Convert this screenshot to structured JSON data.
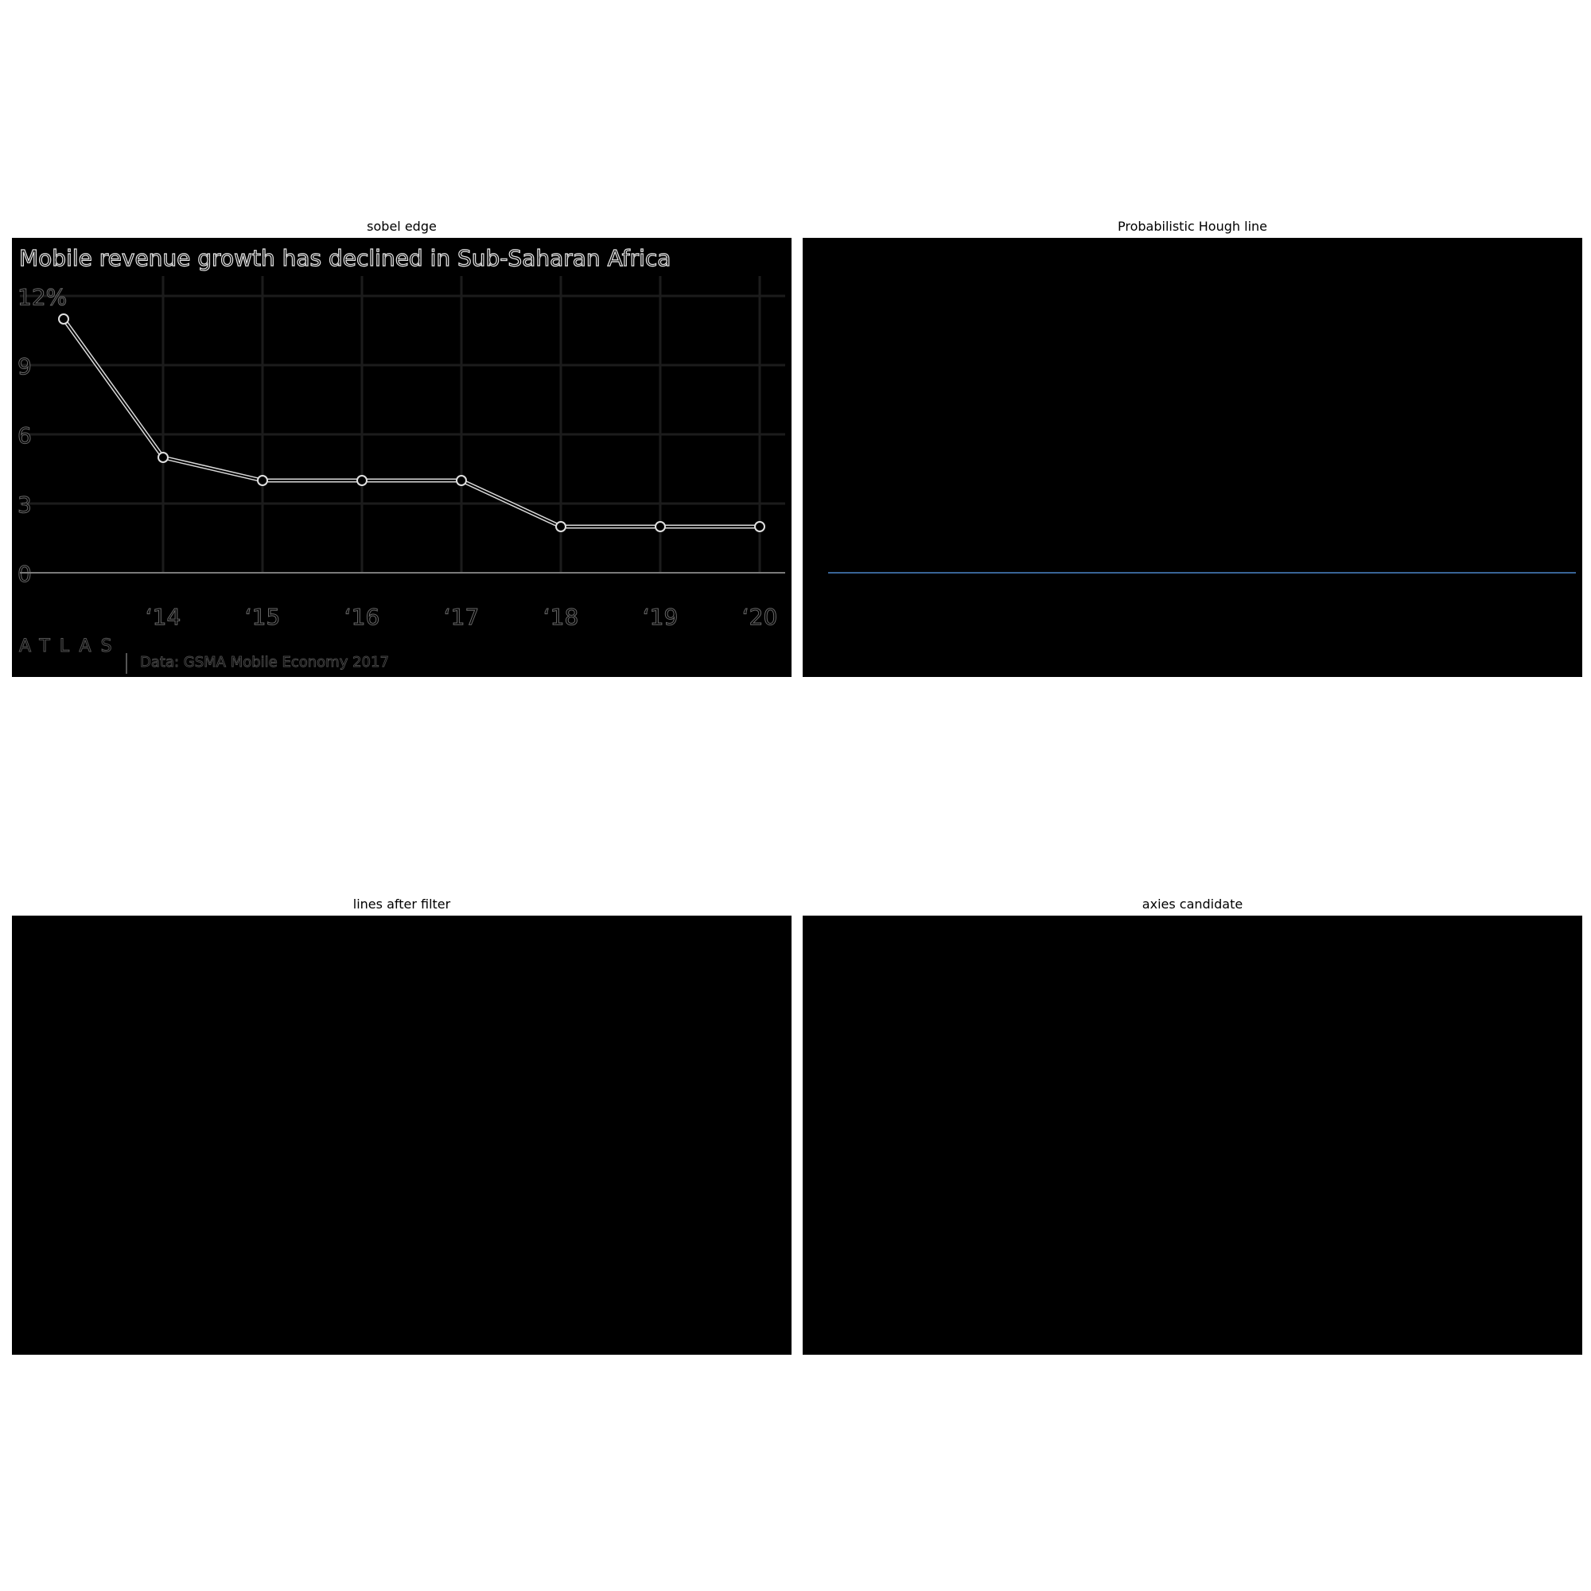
{
  "panels": {
    "sobel": {
      "title": "sobel edge"
    },
    "hough": {
      "title": "Probabilistic Hough line",
      "line_color": "#4a86c8"
    },
    "filtered": {
      "title": "lines after filter"
    },
    "axes": {
      "title": "axies candidate"
    }
  },
  "chart_data": {
    "type": "line",
    "title": "Mobile revenue growth has declined in Sub-Saharan Africa",
    "x": [
      "",
      "‘14",
      "‘15",
      "‘16",
      "‘17",
      "‘18",
      "‘19",
      "‘20"
    ],
    "values": [
      11,
      5,
      4,
      4,
      4,
      2,
      2,
      2
    ],
    "y_ticks": [
      "0",
      "3",
      "6",
      "9",
      "12%"
    ],
    "y_tick_values": [
      0,
      3,
      6,
      9,
      12
    ],
    "ylim": [
      0,
      12
    ],
    "grid": true,
    "logo": "ATLAS",
    "source": "Data: GSMA Mobile Economy 2017"
  }
}
